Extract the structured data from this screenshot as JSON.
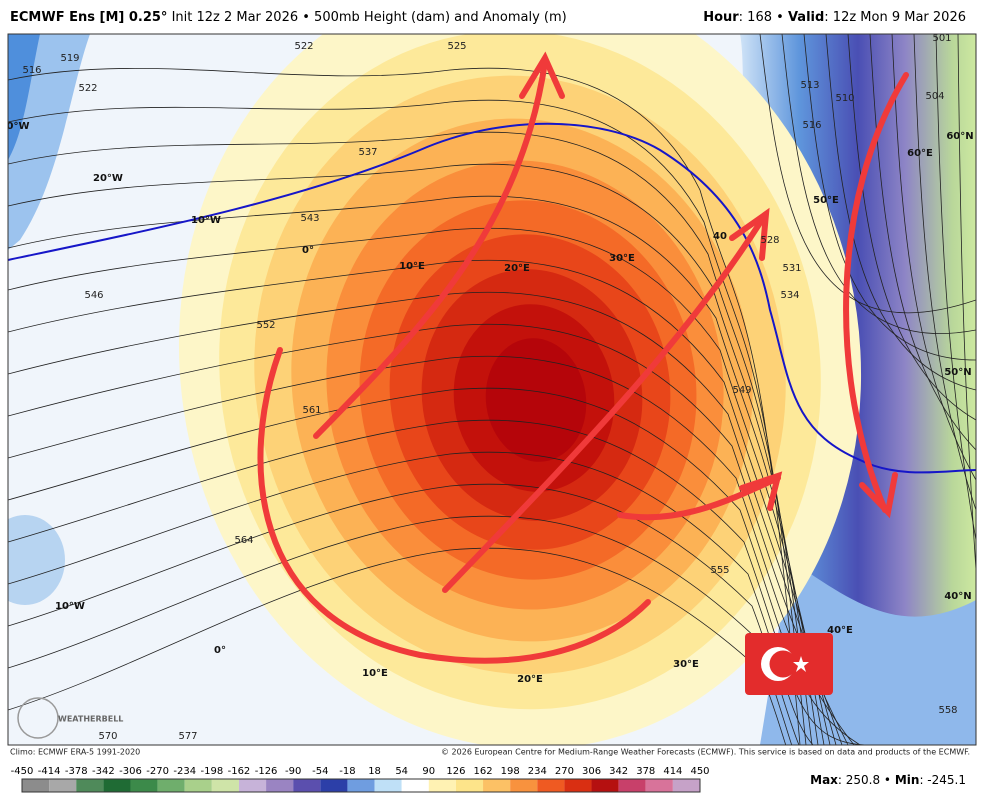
{
  "header": {
    "model": "ECMWF Ens [M] 0.25°",
    "description": "Init 12z 2 Mar 2026 • 500mb Height (dam) and Anomaly (m)",
    "hour_label": "Hour",
    "hour_value": ": 168 •",
    "valid_label": "Valid",
    "valid_value": ": 12z Mon 9 Mar 2026"
  },
  "map": {
    "contour_labels": [
      "522",
      "525",
      "519",
      "516",
      "522",
      "537",
      "543",
      "546",
      "552",
      "561",
      "564",
      "570",
      "577",
      "513",
      "510",
      "516",
      "504",
      "501",
      "528",
      "531",
      "534",
      "549",
      "555",
      "558"
    ],
    "grid_labels": [
      "0°W",
      "20°W",
      "10°W",
      "0°",
      "10°E",
      "20°E",
      "30°E",
      "40",
      "50°E",
      "60°E",
      "60°N",
      "50°N",
      "40°N",
      "10°W",
      "0°",
      "10°E",
      "20°E",
      "30°E",
      "40°E"
    ],
    "watermark": "WEATHERBELL"
  },
  "footer": {
    "climo": "Climo: ECMWF ERA-5 1991-2020",
    "copyright": "© 2026 European Centre for Medium-Range Weather Forecasts (ECMWF). This service is based on data and products of the ECMWF."
  },
  "colorbar": {
    "ticks": [
      -450,
      -414,
      -378,
      -342,
      -306,
      -270,
      -234,
      -198,
      -162,
      -126,
      -90,
      -54,
      -18,
      18,
      54,
      90,
      126,
      162,
      198,
      234,
      270,
      306,
      342,
      378,
      414,
      450
    ],
    "max_label": "Max",
    "max_value": ": 250.8 •",
    "min_label": "Min",
    "min_value": ": -245.1"
  }
}
